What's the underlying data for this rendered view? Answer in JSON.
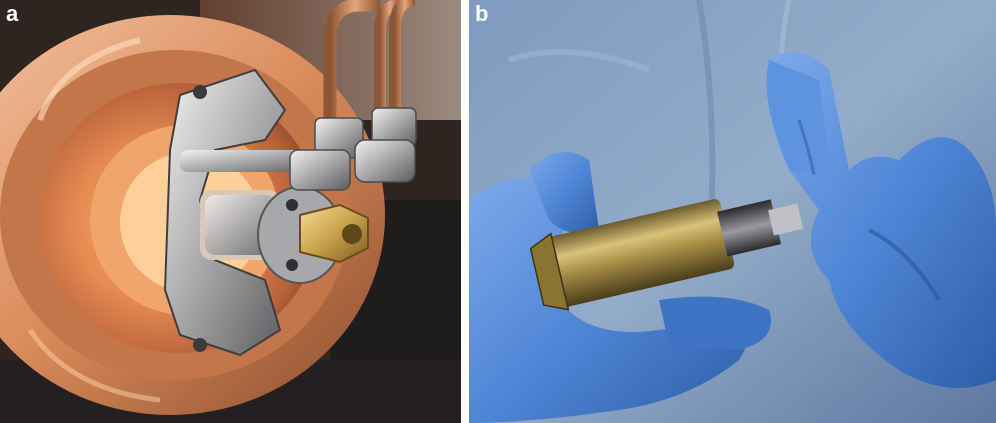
{
  "figure": {
    "panels": [
      {
        "label": "a"
      },
      {
        "label": "b"
      }
    ]
  }
}
